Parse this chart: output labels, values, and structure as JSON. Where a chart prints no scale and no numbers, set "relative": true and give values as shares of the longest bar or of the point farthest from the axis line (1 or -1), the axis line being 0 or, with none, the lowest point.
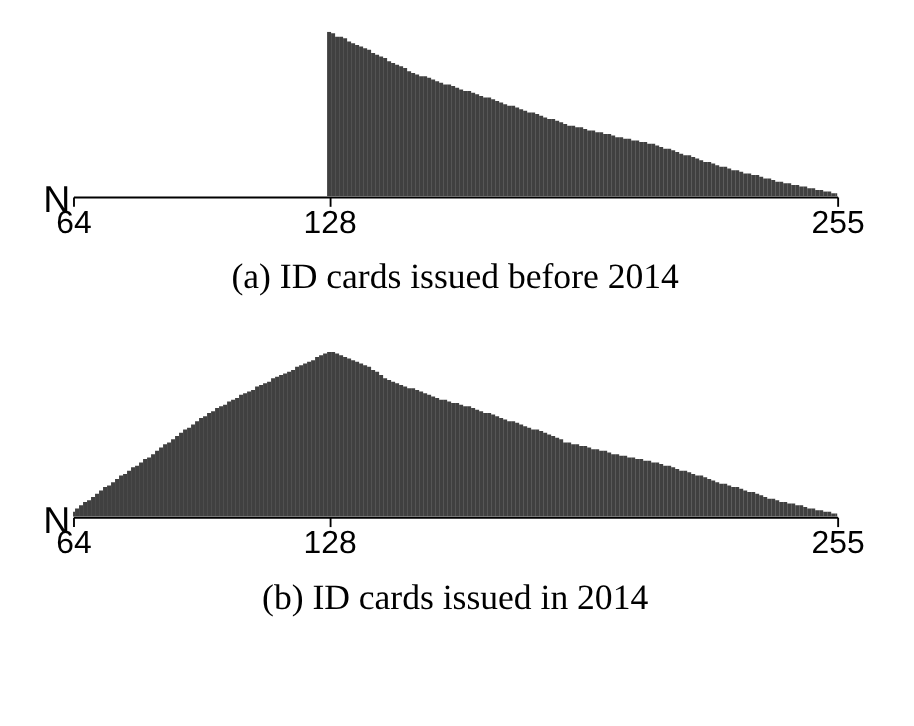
{
  "chart_data": [
    {
      "type": "bar",
      "title": "(a) ID cards issued before 2014",
      "ylabel": "N",
      "relative": true,
      "color": "#404040",
      "xlim": [
        64,
        255
      ],
      "xticks": [
        64,
        128,
        255
      ],
      "grid": false,
      "x": [
        128,
        129,
        130,
        131,
        132,
        133,
        134,
        135,
        136,
        137,
        138,
        139,
        140,
        141,
        142,
        143,
        144,
        145,
        146,
        147,
        148,
        149,
        150,
        151,
        152,
        153,
        154,
        155,
        156,
        157,
        158,
        159,
        160,
        161,
        162,
        163,
        164,
        165,
        166,
        167,
        168,
        169,
        170,
        171,
        172,
        173,
        174,
        175,
        176,
        177,
        178,
        179,
        180,
        181,
        182,
        183,
        184,
        185,
        186,
        187,
        188,
        189,
        190,
        191,
        192,
        193,
        194,
        195,
        196,
        197,
        198,
        199,
        200,
        201,
        202,
        203,
        204,
        205,
        206,
        207,
        208,
        209,
        210,
        211,
        212,
        213,
        214,
        215,
        216,
        217,
        218,
        219,
        220,
        221,
        222,
        223,
        224,
        225,
        226,
        227,
        228,
        229,
        230,
        231,
        232,
        233,
        234,
        235,
        236,
        237,
        238,
        239,
        240,
        241,
        242,
        243,
        244,
        245,
        246,
        247,
        248,
        249,
        250,
        251,
        252,
        253,
        254,
        255
      ],
      "values": [
        1.0,
        0.99,
        0.97,
        0.97,
        0.96,
        0.94,
        0.93,
        0.92,
        0.91,
        0.9,
        0.89,
        0.87,
        0.86,
        0.85,
        0.84,
        0.82,
        0.81,
        0.8,
        0.79,
        0.78,
        0.76,
        0.75,
        0.74,
        0.73,
        0.73,
        0.72,
        0.71,
        0.7,
        0.69,
        0.68,
        0.68,
        0.67,
        0.66,
        0.65,
        0.64,
        0.64,
        0.63,
        0.62,
        0.61,
        0.6,
        0.6,
        0.59,
        0.58,
        0.57,
        0.56,
        0.55,
        0.55,
        0.54,
        0.53,
        0.52,
        0.51,
        0.51,
        0.5,
        0.49,
        0.48,
        0.47,
        0.47,
        0.46,
        0.45,
        0.44,
        0.43,
        0.43,
        0.42,
        0.42,
        0.41,
        0.4,
        0.4,
        0.39,
        0.39,
        0.38,
        0.38,
        0.37,
        0.36,
        0.36,
        0.35,
        0.35,
        0.34,
        0.34,
        0.33,
        0.33,
        0.32,
        0.32,
        0.31,
        0.3,
        0.29,
        0.29,
        0.28,
        0.27,
        0.26,
        0.25,
        0.25,
        0.24,
        0.23,
        0.22,
        0.21,
        0.21,
        0.2,
        0.19,
        0.18,
        0.18,
        0.17,
        0.16,
        0.16,
        0.15,
        0.14,
        0.14,
        0.13,
        0.13,
        0.12,
        0.11,
        0.11,
        0.1,
        0.09,
        0.09,
        0.08,
        0.08,
        0.07,
        0.07,
        0.06,
        0.06,
        0.05,
        0.05,
        0.04,
        0.04,
        0.03,
        0.03,
        0.02,
        0.02
      ]
    },
    {
      "type": "bar",
      "title": "(b) ID cards issued in 2014",
      "ylabel": "N",
      "relative": true,
      "color": "#404040",
      "xlim": [
        64,
        255
      ],
      "xticks": [
        64,
        128,
        255
      ],
      "grid": false,
      "x": [
        64,
        65,
        66,
        67,
        68,
        69,
        70,
        71,
        72,
        73,
        74,
        75,
        76,
        77,
        78,
        79,
        80,
        81,
        82,
        83,
        84,
        85,
        86,
        87,
        88,
        89,
        90,
        91,
        92,
        93,
        94,
        95,
        96,
        97,
        98,
        99,
        100,
        101,
        102,
        103,
        104,
        105,
        106,
        107,
        108,
        109,
        110,
        111,
        112,
        113,
        114,
        115,
        116,
        117,
        118,
        119,
        120,
        121,
        122,
        123,
        124,
        125,
        126,
        127,
        128,
        129,
        130,
        131,
        132,
        133,
        134,
        135,
        136,
        137,
        138,
        139,
        140,
        141,
        142,
        143,
        144,
        145,
        146,
        147,
        148,
        149,
        150,
        151,
        152,
        153,
        154,
        155,
        156,
        157,
        158,
        159,
        160,
        161,
        162,
        163,
        164,
        165,
        166,
        167,
        168,
        169,
        170,
        171,
        172,
        173,
        174,
        175,
        176,
        177,
        178,
        179,
        180,
        181,
        182,
        183,
        184,
        185,
        186,
        187,
        188,
        189,
        190,
        191,
        192,
        193,
        194,
        195,
        196,
        197,
        198,
        199,
        200,
        201,
        202,
        203,
        204,
        205,
        206,
        207,
        208,
        209,
        210,
        211,
        212,
        213,
        214,
        215,
        216,
        217,
        218,
        219,
        220,
        221,
        222,
        223,
        224,
        225,
        226,
        227,
        228,
        229,
        230,
        231,
        232,
        233,
        234,
        235,
        236,
        237,
        238,
        239,
        240,
        241,
        242,
        243,
        244,
        245,
        246,
        247,
        248,
        249,
        250,
        251,
        252,
        253,
        254,
        255
      ],
      "values": [
        0.03,
        0.05,
        0.07,
        0.09,
        0.1,
        0.12,
        0.14,
        0.16,
        0.18,
        0.19,
        0.21,
        0.23,
        0.25,
        0.26,
        0.28,
        0.3,
        0.31,
        0.33,
        0.35,
        0.36,
        0.38,
        0.4,
        0.42,
        0.44,
        0.45,
        0.47,
        0.49,
        0.51,
        0.53,
        0.54,
        0.56,
        0.58,
        0.6,
        0.61,
        0.63,
        0.64,
        0.66,
        0.67,
        0.68,
        0.7,
        0.71,
        0.72,
        0.74,
        0.75,
        0.76,
        0.77,
        0.79,
        0.8,
        0.81,
        0.82,
        0.84,
        0.85,
        0.86,
        0.87,
        0.88,
        0.89,
        0.91,
        0.92,
        0.93,
        0.94,
        0.95,
        0.97,
        0.98,
        0.99,
        1.0,
        1.0,
        0.99,
        0.98,
        0.97,
        0.96,
        0.95,
        0.94,
        0.93,
        0.92,
        0.91,
        0.89,
        0.88,
        0.86,
        0.84,
        0.83,
        0.82,
        0.81,
        0.8,
        0.79,
        0.78,
        0.78,
        0.77,
        0.76,
        0.75,
        0.74,
        0.73,
        0.72,
        0.71,
        0.71,
        0.7,
        0.69,
        0.69,
        0.68,
        0.67,
        0.67,
        0.66,
        0.65,
        0.64,
        0.63,
        0.63,
        0.62,
        0.61,
        0.6,
        0.59,
        0.58,
        0.58,
        0.57,
        0.56,
        0.55,
        0.54,
        0.53,
        0.53,
        0.52,
        0.51,
        0.5,
        0.49,
        0.48,
        0.47,
        0.45,
        0.45,
        0.44,
        0.44,
        0.43,
        0.43,
        0.42,
        0.41,
        0.41,
        0.4,
        0.4,
        0.39,
        0.38,
        0.38,
        0.37,
        0.37,
        0.36,
        0.36,
        0.35,
        0.35,
        0.34,
        0.34,
        0.33,
        0.33,
        0.32,
        0.31,
        0.31,
        0.3,
        0.29,
        0.28,
        0.28,
        0.27,
        0.26,
        0.25,
        0.25,
        0.24,
        0.23,
        0.22,
        0.21,
        0.2,
        0.2,
        0.19,
        0.18,
        0.18,
        0.17,
        0.16,
        0.15,
        0.15,
        0.14,
        0.13,
        0.12,
        0.11,
        0.11,
        0.1,
        0.09,
        0.09,
        0.08,
        0.08,
        0.07,
        0.07,
        0.06,
        0.05,
        0.05,
        0.04,
        0.04,
        0.03,
        0.03,
        0.02,
        0.02
      ]
    }
  ]
}
